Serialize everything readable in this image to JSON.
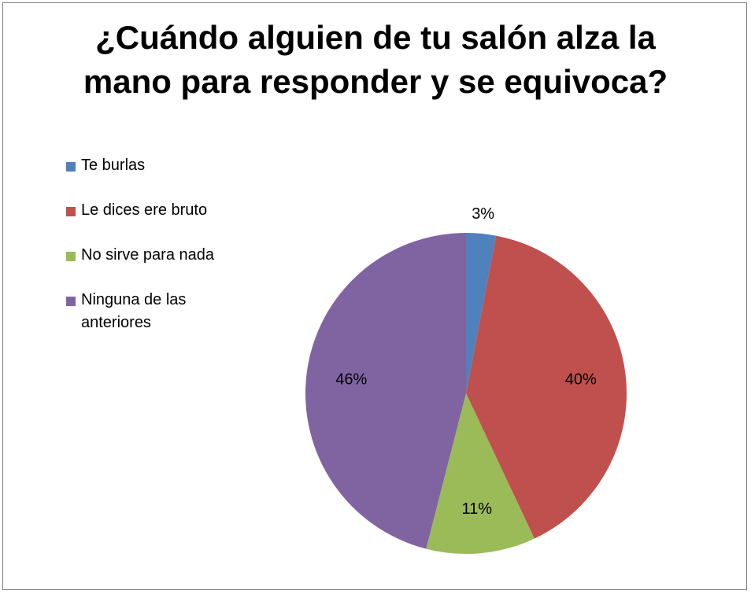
{
  "chart_data": {
    "type": "pie",
    "title_lines": [
      "¿Cuándo alguien de tu salón alza la",
      "mano para responder y se equivoca?"
    ],
    "start_angle_deg": 0,
    "direction": "clockwise",
    "legend_position": "left",
    "slices": [
      {
        "label": "Te burlas",
        "value": 3,
        "display": "3%",
        "color": "#4f81bd",
        "label_placement": "outside"
      },
      {
        "label": "Le dices ere bruto",
        "value": 40,
        "display": "40%",
        "color": "#c0504d",
        "label_placement": "inside"
      },
      {
        "label": "No sirve para nada",
        "value": 11,
        "display": "11%",
        "color": "#9bbb59",
        "label_placement": "inside"
      },
      {
        "label": "Ninguna de las anteriores",
        "value": 46,
        "display": "46%",
        "color": "#8064a2",
        "label_placement": "inside"
      }
    ]
  }
}
